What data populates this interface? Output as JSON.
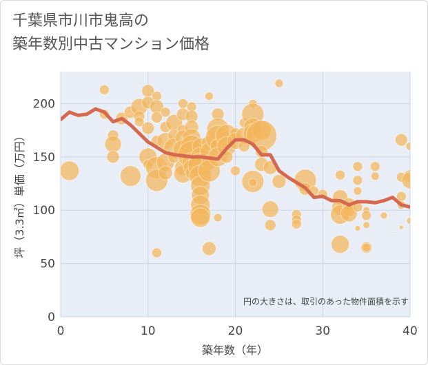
{
  "title_lines": [
    "千葉県市川市鬼高の",
    "築年数別中古マンション価格"
  ],
  "chart_data": {
    "type": "scatter",
    "xlabel": "築年数（年）",
    "ylabel": "坪（3.3㎡）単価（万円）",
    "xlim": [
      0,
      40
    ],
    "ylim": [
      0,
      230
    ],
    "xticks": [
      0,
      10,
      20,
      30,
      40
    ],
    "yticks": [
      0,
      50,
      100,
      150,
      200
    ],
    "grid": true,
    "note": "円の大きさは、取引のあった物件面積を示す",
    "colors": {
      "bubble": "#f2b55a",
      "line": "#d4694f",
      "grid": "#c8d4e4",
      "plot_bg": "#e9eef6"
    },
    "trend_line": {
      "x": [
        0,
        1,
        2,
        3,
        4,
        5,
        6,
        7,
        8,
        9,
        10,
        11,
        12,
        13,
        14,
        15,
        16,
        17,
        18,
        19,
        20,
        21,
        22,
        23,
        24,
        25,
        26,
        27,
        28,
        29,
        30,
        31,
        32,
        33,
        34,
        35,
        36,
        37,
        38,
        39,
        40
      ],
      "y": [
        185,
        192,
        189,
        190,
        195,
        192,
        183,
        186,
        180,
        172,
        164,
        159,
        154,
        152,
        151,
        150,
        150,
        149,
        148,
        158,
        166,
        166,
        162,
        152,
        152,
        137,
        131,
        126,
        121,
        112,
        113,
        109,
        109,
        105,
        108,
        108,
        107,
        109,
        112,
        105,
        103
      ]
    },
    "bubbles": [
      {
        "x": 1,
        "y": 137,
        "r": 14
      },
      {
        "x": 5,
        "y": 213,
        "r": 7
      },
      {
        "x": 5,
        "y": 190,
        "r": 7
      },
      {
        "x": 6,
        "y": 170,
        "r": 8
      },
      {
        "x": 6,
        "y": 162,
        "r": 12
      },
      {
        "x": 6,
        "y": 150,
        "r": 9
      },
      {
        "x": 7,
        "y": 186,
        "r": 9
      },
      {
        "x": 8,
        "y": 192,
        "r": 9
      },
      {
        "x": 8,
        "y": 132,
        "r": 15
      },
      {
        "x": 9,
        "y": 197,
        "r": 12
      },
      {
        "x": 9,
        "y": 188,
        "r": 8
      },
      {
        "x": 9,
        "y": 183,
        "r": 7
      },
      {
        "x": 10,
        "y": 212,
        "r": 9
      },
      {
        "x": 10,
        "y": 201,
        "r": 9
      },
      {
        "x": 10,
        "y": 177,
        "r": 9
      },
      {
        "x": 10,
        "y": 150,
        "r": 13
      },
      {
        "x": 10,
        "y": 143,
        "r": 7
      },
      {
        "x": 11,
        "y": 207,
        "r": 7
      },
      {
        "x": 11,
        "y": 197,
        "r": 10
      },
      {
        "x": 11,
        "y": 187,
        "r": 8
      },
      {
        "x": 11,
        "y": 165,
        "r": 8
      },
      {
        "x": 11,
        "y": 140,
        "r": 16
      },
      {
        "x": 11,
        "y": 128,
        "r": 16
      },
      {
        "x": 11,
        "y": 60,
        "r": 7
      },
      {
        "x": 12,
        "y": 192,
        "r": 7
      },
      {
        "x": 12,
        "y": 178,
        "r": 8
      },
      {
        "x": 12,
        "y": 165,
        "r": 12
      },
      {
        "x": 12,
        "y": 145,
        "r": 13
      },
      {
        "x": 12,
        "y": 135,
        "r": 10
      },
      {
        "x": 13,
        "y": 182,
        "r": 12
      },
      {
        "x": 13,
        "y": 170,
        "r": 9
      },
      {
        "x": 13,
        "y": 158,
        "r": 15
      },
      {
        "x": 13,
        "y": 150,
        "r": 9
      },
      {
        "x": 14,
        "y": 200,
        "r": 7
      },
      {
        "x": 14,
        "y": 190,
        "r": 9
      },
      {
        "x": 14,
        "y": 175,
        "r": 8
      },
      {
        "x": 14,
        "y": 168,
        "r": 11
      },
      {
        "x": 14,
        "y": 157,
        "r": 14
      },
      {
        "x": 14,
        "y": 140,
        "r": 12
      },
      {
        "x": 14,
        "y": 134,
        "r": 13
      },
      {
        "x": 15,
        "y": 197,
        "r": 7
      },
      {
        "x": 15,
        "y": 188,
        "r": 9
      },
      {
        "x": 15,
        "y": 178,
        "r": 10
      },
      {
        "x": 15,
        "y": 168,
        "r": 13
      },
      {
        "x": 15,
        "y": 160,
        "r": 16
      },
      {
        "x": 15,
        "y": 152,
        "r": 20
      },
      {
        "x": 15,
        "y": 145,
        "r": 14
      },
      {
        "x": 15,
        "y": 140,
        "r": 12
      },
      {
        "x": 15,
        "y": 135,
        "r": 9
      },
      {
        "x": 16,
        "y": 160,
        "r": 12
      },
      {
        "x": 16,
        "y": 150,
        "r": 14
      },
      {
        "x": 16,
        "y": 142,
        "r": 18
      },
      {
        "x": 16,
        "y": 132,
        "r": 16
      },
      {
        "x": 16,
        "y": 123,
        "r": 14
      },
      {
        "x": 16,
        "y": 114,
        "r": 13
      },
      {
        "x": 16,
        "y": 105,
        "r": 14
      },
      {
        "x": 16,
        "y": 96,
        "r": 15
      },
      {
        "x": 16,
        "y": 93,
        "r": 14
      },
      {
        "x": 17,
        "y": 207,
        "r": 6
      },
      {
        "x": 17,
        "y": 163,
        "r": 11
      },
      {
        "x": 17,
        "y": 155,
        "r": 13
      },
      {
        "x": 17,
        "y": 145,
        "r": 11
      },
      {
        "x": 17,
        "y": 137,
        "r": 16
      },
      {
        "x": 17,
        "y": 64,
        "r": 10
      },
      {
        "x": 18,
        "y": 190,
        "r": 9
      },
      {
        "x": 18,
        "y": 176,
        "r": 16
      },
      {
        "x": 18,
        "y": 168,
        "r": 18
      },
      {
        "x": 18,
        "y": 160,
        "r": 11
      },
      {
        "x": 18,
        "y": 150,
        "r": 14
      },
      {
        "x": 18,
        "y": 93,
        "r": 6
      },
      {
        "x": 19,
        "y": 170,
        "r": 16
      },
      {
        "x": 19,
        "y": 160,
        "r": 14
      },
      {
        "x": 19,
        "y": 150,
        "r": 9
      },
      {
        "x": 20,
        "y": 172,
        "r": 8
      },
      {
        "x": 20,
        "y": 165,
        "r": 12
      },
      {
        "x": 20,
        "y": 137,
        "r": 7
      },
      {
        "x": 21,
        "y": 182,
        "r": 7
      },
      {
        "x": 21,
        "y": 170,
        "r": 12
      },
      {
        "x": 21,
        "y": 160,
        "r": 8
      },
      {
        "x": 22,
        "y": 200,
        "r": 6
      },
      {
        "x": 22,
        "y": 190,
        "r": 16
      },
      {
        "x": 22,
        "y": 178,
        "r": 13
      },
      {
        "x": 22,
        "y": 172,
        "r": 14
      },
      {
        "x": 22,
        "y": 127,
        "r": 16
      },
      {
        "x": 22,
        "y": 126,
        "r": 6
      },
      {
        "x": 23,
        "y": 175,
        "r": 14
      },
      {
        "x": 23,
        "y": 170,
        "r": 22
      },
      {
        "x": 23,
        "y": 155,
        "r": 9
      },
      {
        "x": 23,
        "y": 143,
        "r": 10
      },
      {
        "x": 24,
        "y": 140,
        "r": 10
      },
      {
        "x": 24,
        "y": 101,
        "r": 12
      },
      {
        "x": 24,
        "y": 86,
        "r": 8
      },
      {
        "x": 25,
        "y": 219,
        "r": 6
      },
      {
        "x": 25,
        "y": 127,
        "r": 10
      },
      {
        "x": 27,
        "y": 96,
        "r": 7
      },
      {
        "x": 27,
        "y": 91,
        "r": 7
      },
      {
        "x": 27,
        "y": 87,
        "r": 7
      },
      {
        "x": 28,
        "y": 128,
        "r": 16
      },
      {
        "x": 28,
        "y": 120,
        "r": 9
      },
      {
        "x": 29,
        "y": 118,
        "r": 7
      },
      {
        "x": 30,
        "y": 115,
        "r": 7
      },
      {
        "x": 30,
        "y": 103,
        "r": 1
      },
      {
        "x": 32,
        "y": 133,
        "r": 7
      },
      {
        "x": 32,
        "y": 112,
        "r": 11
      },
      {
        "x": 32,
        "y": 103,
        "r": 12
      },
      {
        "x": 32,
        "y": 96,
        "r": 14
      },
      {
        "x": 32,
        "y": 68,
        "r": 13
      },
      {
        "x": 33,
        "y": 105,
        "r": 10
      },
      {
        "x": 33,
        "y": 100,
        "r": 9
      },
      {
        "x": 33,
        "y": 97,
        "r": 12
      },
      {
        "x": 34,
        "y": 141,
        "r": 7
      },
      {
        "x": 34,
        "y": 128,
        "r": 7
      },
      {
        "x": 34,
        "y": 118,
        "r": 6
      },
      {
        "x": 34,
        "y": 103,
        "r": 7
      },
      {
        "x": 34,
        "y": 83,
        "r": 4
      },
      {
        "x": 35,
        "y": 100,
        "r": 5
      },
      {
        "x": 35,
        "y": 95,
        "r": 7
      },
      {
        "x": 35,
        "y": 86,
        "r": 5
      },
      {
        "x": 35,
        "y": 65,
        "r": 8
      },
      {
        "x": 35,
        "y": 65,
        "r": 6
      },
      {
        "x": 36,
        "y": 141,
        "r": 7
      },
      {
        "x": 36,
        "y": 132,
        "r": 6
      },
      {
        "x": 37,
        "y": 95,
        "r": 5
      },
      {
        "x": 38,
        "y": 96,
        "r": 1
      },
      {
        "x": 38,
        "y": 86,
        "r": 1
      },
      {
        "x": 38,
        "y": 79,
        "r": 1
      },
      {
        "x": 38,
        "y": 107,
        "r": 1
      },
      {
        "x": 39,
        "y": 166,
        "r": 9
      },
      {
        "x": 39,
        "y": 131,
        "r": 7
      },
      {
        "x": 39,
        "y": 113,
        "r": 7
      },
      {
        "x": 39,
        "y": 105,
        "r": 6
      },
      {
        "x": 39,
        "y": 84,
        "r": 3
      },
      {
        "x": 40,
        "y": 160,
        "r": 6
      },
      {
        "x": 40,
        "y": 132,
        "r": 9
      },
      {
        "x": 40,
        "y": 128,
        "r": 12
      },
      {
        "x": 40,
        "y": 90,
        "r": 5
      }
    ]
  }
}
